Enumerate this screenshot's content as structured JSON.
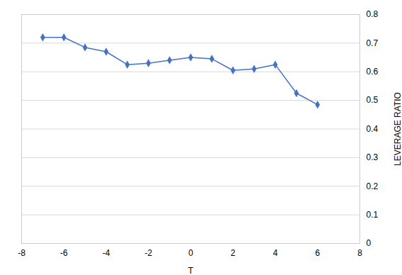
{
  "chart_data": {
    "type": "line",
    "x": [
      -7,
      -6,
      -5,
      -4,
      -3,
      -2,
      -1,
      0,
      1,
      2,
      3,
      4,
      5,
      6
    ],
    "values": [
      0.72,
      0.72,
      0.685,
      0.67,
      0.625,
      0.63,
      0.64,
      0.65,
      0.645,
      0.605,
      0.61,
      0.625,
      0.525,
      0.485
    ],
    "color": "#4472C4",
    "marker": "diamond",
    "xlabel": "T",
    "ylabel": "LEVERAGE RATIO",
    "xlim": [
      -8,
      8
    ],
    "ylim": [
      0,
      0.8
    ],
    "xticks": [
      -8,
      -6,
      -4,
      -2,
      0,
      2,
      4,
      6,
      8
    ],
    "yticks": [
      0,
      0.1,
      0.2,
      0.3,
      0.4,
      0.5,
      0.6,
      0.7,
      0.8
    ],
    "grid": true
  }
}
